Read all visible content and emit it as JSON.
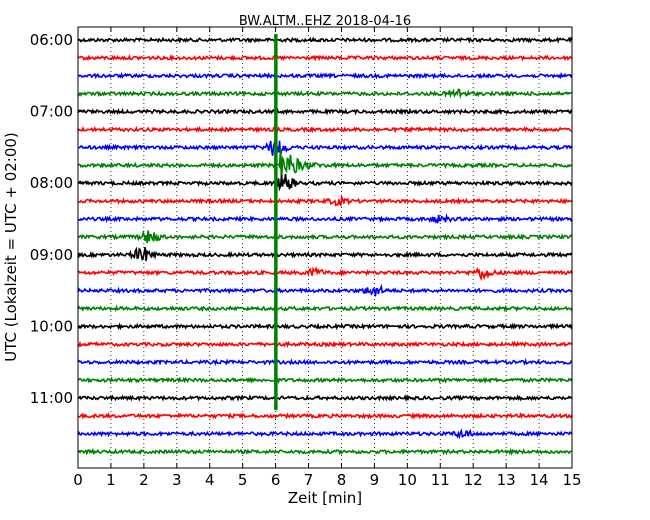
{
  "chart_data": {
    "type": "line",
    "title": "BW.ALTM..EHZ 2018-04-16",
    "xlabel": "Zeit  [min]",
    "ylabel": "UTC (Lokalzeit = UTC + 02:00)",
    "xlim": [
      0,
      15
    ],
    "x_ticks": [
      "0",
      "1",
      "2",
      "3",
      "4",
      "5",
      "6",
      "7",
      "8",
      "9",
      "10",
      "11",
      "12",
      "13",
      "14",
      "15"
    ],
    "y_tick_labels": [
      "06:00",
      "07:00",
      "08:00",
      "09:00",
      "10:00",
      "11:00"
    ],
    "grid": "vertical dotted",
    "trace_interval_min": 15,
    "colors_cycle": [
      "#000000",
      "#ff0000",
      "#0000ff",
      "#008000"
    ],
    "traces": [
      {
        "start": "06:00",
        "color": "#000000"
      },
      {
        "start": "06:15",
        "color": "#ff0000"
      },
      {
        "start": "06:30",
        "color": "#0000ff"
      },
      {
        "start": "06:45",
        "color": "#008000",
        "events": [
          {
            "x": 11.5,
            "amp": 4
          }
        ]
      },
      {
        "start": "07:00",
        "color": "#000000"
      },
      {
        "start": "07:15",
        "color": "#ff0000"
      },
      {
        "start": "07:30",
        "color": "#0000ff",
        "events": [
          {
            "x": 6.05,
            "amp": 10
          }
        ]
      },
      {
        "start": "07:45",
        "color": "#008000",
        "events": [
          {
            "x": 6.2,
            "amp": 20,
            "type": "quake"
          }
        ]
      },
      {
        "start": "08:00",
        "color": "#000000",
        "events": [
          {
            "x": 6.3,
            "amp": 8
          }
        ]
      },
      {
        "start": "08:15",
        "color": "#ff0000",
        "events": [
          {
            "x": 7.9,
            "amp": 3
          }
        ]
      },
      {
        "start": "08:30",
        "color": "#0000ff",
        "events": [
          {
            "x": 11.0,
            "amp": 3
          }
        ]
      },
      {
        "start": "08:45",
        "color": "#008000",
        "events": [
          {
            "x": 2.2,
            "amp": 6
          }
        ]
      },
      {
        "start": "09:00",
        "color": "#000000",
        "events": [
          {
            "x": 1.95,
            "amp": 7
          }
        ]
      },
      {
        "start": "09:15",
        "color": "#ff0000",
        "events": [
          {
            "x": 7.2,
            "amp": 3
          },
          {
            "x": 12.3,
            "amp": 5
          }
        ]
      },
      {
        "start": "09:30",
        "color": "#0000ff",
        "events": [
          {
            "x": 9.0,
            "amp": 5
          }
        ]
      },
      {
        "start": "09:45",
        "color": "#008000"
      },
      {
        "start": "10:00",
        "color": "#000000"
      },
      {
        "start": "10:15",
        "color": "#ff0000"
      },
      {
        "start": "10:30",
        "color": "#0000ff"
      },
      {
        "start": "10:45",
        "color": "#008000"
      },
      {
        "start": "11:00",
        "color": "#000000"
      },
      {
        "start": "11:15",
        "color": "#ff0000"
      },
      {
        "start": "11:30",
        "color": "#0000ff",
        "events": [
          {
            "x": 11.7,
            "amp": 3
          }
        ]
      },
      {
        "start": "11:45",
        "color": "#008000"
      }
    ],
    "annotations": [
      {
        "type": "vertical_spike",
        "x": 6.0,
        "from": "05:55",
        "to": "11:10",
        "color": "#008000"
      }
    ]
  }
}
